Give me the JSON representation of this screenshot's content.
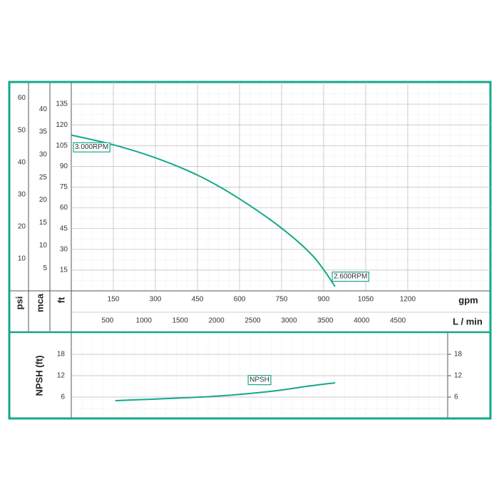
{
  "chart_data": [
    {
      "type": "line",
      "xlabel": "gpm",
      "xlim": [
        0,
        1495
      ],
      "xticks": [
        150,
        300,
        450,
        600,
        750,
        900,
        1050,
        1200
      ],
      "x2label": "L / min",
      "x2lim": [
        0,
        5776
      ],
      "x2ticks": [
        500,
        1000,
        1500,
        2000,
        2500,
        3000,
        3500,
        4000,
        4500
      ],
      "ylabel": "ft",
      "ylim": [
        0,
        151
      ],
      "yticks": [
        15,
        30,
        45,
        60,
        75,
        90,
        105,
        120,
        135
      ],
      "y2label": "mca",
      "y2lim": [
        0,
        46
      ],
      "y2ticks": [
        5,
        10,
        15,
        20,
        25,
        30,
        35,
        40
      ],
      "y3label": "psi",
      "y3lim": [
        0,
        65
      ],
      "y3ticks": [
        10,
        20,
        30,
        40,
        50,
        60
      ],
      "grid": true,
      "series": [
        {
          "color": "#14a88a",
          "x": [
            0,
            150,
            305,
            458,
            597,
            750,
            864,
            941
          ],
          "values": [
            112.6,
            105.6,
            95.8,
            82.9,
            66.9,
            45.3,
            24.7,
            3.1
          ]
        }
      ],
      "annotations": [
        "3.000RPM",
        "2.600RPM"
      ]
    },
    {
      "type": "line",
      "ylabel": "NPSH (ft)",
      "xlim": [
        0,
        1342
      ],
      "ylim": [
        0,
        24.2
      ],
      "yticks": [
        6,
        12,
        18
      ],
      "grid": true,
      "series": [
        {
          "name": "NPSH",
          "color": "#14a88a",
          "x": [
            157,
            508,
            712,
            839,
            941
          ],
          "values": [
            5.0,
            6.2,
            7.6,
            9.0,
            10.0
          ]
        }
      ]
    }
  ]
}
